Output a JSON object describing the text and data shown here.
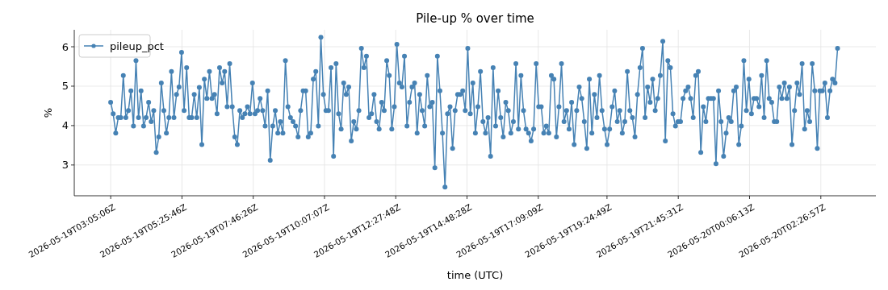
{
  "chart_data": {
    "type": "line",
    "title": "Pile-up % over time",
    "xlabel": "time (UTC)",
    "ylabel": "%",
    "x": [
      "2026-05-19T03:05",
      "2026-05-19T03:10",
      "2026-05-19T03:15",
      "2026-05-19T03:20",
      "2026-05-19T03:25",
      "2026-05-19T03:30",
      "2026-05-19T03:35",
      "2026-05-19T03:40",
      "2026-05-19T03:45",
      "2026-05-19T03:50",
      "2026-05-19T03:55",
      "2026-05-19T04:00",
      "2026-05-19T04:05",
      "2026-05-19T04:10",
      "2026-05-19T04:15",
      "2026-05-19T04:20",
      "2026-05-19T04:25",
      "2026-05-19T04:30",
      "2026-05-19T04:35",
      "2026-05-19T04:40",
      "2026-05-19T04:45",
      "2026-05-19T04:50",
      "2026-05-19T04:55",
      "2026-05-19T05:00",
      "2026-05-19T05:05",
      "2026-05-19T05:10",
      "2026-05-19T05:15",
      "2026-05-19T05:20",
      "2026-05-19T05:25",
      "2026-05-19T05:30",
      "2026-05-19T05:35",
      "2026-05-19T05:40",
      "2026-05-19T05:45",
      "2026-05-19T05:50",
      "2026-05-19T05:55",
      "2026-05-19T06:00",
      "2026-05-19T06:05",
      "2026-05-19T06:10",
      "2026-05-19T06:15",
      "2026-05-19T06:20",
      "2026-05-19T06:25",
      "2026-05-19T06:30",
      "2026-05-19T06:35",
      "2026-05-19T06:40",
      "2026-05-19T06:45",
      "2026-05-19T06:50",
      "2026-05-19T06:55",
      "2026-05-19T07:00",
      "2026-05-19T07:05",
      "2026-05-19T07:10",
      "2026-05-19T07:15",
      "2026-05-19T07:20",
      "2026-05-19T07:25",
      "2026-05-19T07:30",
      "2026-05-19T07:35",
      "2026-05-19T07:40",
      "2026-05-19T07:45",
      "2026-05-19T07:50",
      "2026-05-19T07:55",
      "2026-05-19T08:00",
      "2026-05-19T08:05",
      "2026-05-19T08:10",
      "2026-05-19T08:15",
      "2026-05-19T08:20",
      "2026-05-19T08:25",
      "2026-05-19T08:30",
      "2026-05-19T08:35",
      "2026-05-19T08:40",
      "2026-05-19T08:45",
      "2026-05-19T08:50",
      "2026-05-19T08:55",
      "2026-05-19T09:00",
      "2026-05-19T09:05",
      "2026-05-19T09:10",
      "2026-05-19T09:15",
      "2026-05-19T09:20",
      "2026-05-19T09:25",
      "2026-05-19T09:30",
      "2026-05-19T09:35",
      "2026-05-19T09:40",
      "2026-05-19T09:45",
      "2026-05-19T09:50",
      "2026-05-19T09:55",
      "2026-05-19T10:00",
      "2026-05-19T10:05",
      "2026-05-19T10:10",
      "2026-05-19T10:15",
      "2026-05-19T10:20",
      "2026-05-19T10:25",
      "2026-05-19T10:30",
      "2026-05-19T10:35",
      "2026-05-19T10:40",
      "2026-05-19T10:45",
      "2026-05-19T10:50",
      "2026-05-19T10:55",
      "2026-05-19T11:00",
      "2026-05-19T11:05",
      "2026-05-19T11:10",
      "2026-05-19T11:15",
      "2026-05-19T11:20",
      "2026-05-19T11:25",
      "2026-05-19T11:30",
      "2026-05-19T11:35",
      "2026-05-19T11:40",
      "2026-05-19T11:45",
      "2026-05-19T11:50",
      "2026-05-19T11:55",
      "2026-05-19T12:00",
      "2026-05-19T12:05",
      "2026-05-19T12:10",
      "2026-05-19T12:15",
      "2026-05-19T12:20",
      "2026-05-19T12:25",
      "2026-05-19T12:30",
      "2026-05-19T12:35",
      "2026-05-19T12:40",
      "2026-05-19T12:45",
      "2026-05-19T12:50",
      "2026-05-19T12:55",
      "2026-05-19T13:00",
      "2026-05-19T13:05",
      "2026-05-19T13:10",
      "2026-05-19T13:15",
      "2026-05-19T13:20",
      "2026-05-19T13:25",
      "2026-05-19T13:30",
      "2026-05-19T13:35",
      "2026-05-19T13:40",
      "2026-05-19T13:45",
      "2026-05-19T13:50",
      "2026-05-19T13:55",
      "2026-05-19T14:00",
      "2026-05-19T14:05",
      "2026-05-19T14:10",
      "2026-05-19T14:15",
      "2026-05-19T14:20",
      "2026-05-19T14:25",
      "2026-05-19T14:30",
      "2026-05-19T14:35",
      "2026-05-19T14:40",
      "2026-05-19T14:45",
      "2026-05-19T14:50",
      "2026-05-19T14:55",
      "2026-05-19T15:00",
      "2026-05-19T15:05",
      "2026-05-19T15:10",
      "2026-05-19T15:15",
      "2026-05-19T15:20",
      "2026-05-19T15:25",
      "2026-05-19T15:30",
      "2026-05-19T15:35",
      "2026-05-19T15:40",
      "2026-05-19T15:45",
      "2026-05-19T15:50",
      "2026-05-19T15:55",
      "2026-05-19T16:00",
      "2026-05-19T16:05",
      "2026-05-19T16:10",
      "2026-05-19T16:15",
      "2026-05-19T16:20",
      "2026-05-19T16:25",
      "2026-05-19T16:30",
      "2026-05-19T16:35",
      "2026-05-19T16:40",
      "2026-05-19T16:45",
      "2026-05-19T16:50",
      "2026-05-19T16:55",
      "2026-05-19T17:00",
      "2026-05-19T17:05",
      "2026-05-19T17:10",
      "2026-05-19T17:15",
      "2026-05-19T17:20",
      "2026-05-19T17:25",
      "2026-05-19T17:30",
      "2026-05-19T17:35",
      "2026-05-19T17:40",
      "2026-05-19T17:45",
      "2026-05-19T17:50",
      "2026-05-19T17:55",
      "2026-05-19T18:00",
      "2026-05-19T18:05",
      "2026-05-19T18:10",
      "2026-05-19T18:15",
      "2026-05-19T18:20",
      "2026-05-19T18:25",
      "2026-05-19T18:30",
      "2026-05-19T18:35",
      "2026-05-19T18:40",
      "2026-05-19T18:45",
      "2026-05-19T18:50",
      "2026-05-19T18:55",
      "2026-05-19T19:00",
      "2026-05-19T19:05",
      "2026-05-19T19:10",
      "2026-05-19T19:15",
      "2026-05-19T19:20",
      "2026-05-19T19:25",
      "2026-05-19T19:30",
      "2026-05-19T19:35",
      "2026-05-19T19:40",
      "2026-05-19T19:45",
      "2026-05-19T19:50",
      "2026-05-19T19:55",
      "2026-05-19T20:00",
      "2026-05-19T20:05",
      "2026-05-19T20:10",
      "2026-05-19T20:15",
      "2026-05-19T20:20",
      "2026-05-19T20:25",
      "2026-05-19T20:30",
      "2026-05-19T20:35",
      "2026-05-19T20:40",
      "2026-05-19T20:45",
      "2026-05-19T20:50",
      "2026-05-19T20:55",
      "2026-05-19T21:00",
      "2026-05-19T21:05",
      "2026-05-19T21:10",
      "2026-05-19T21:15",
      "2026-05-19T21:20",
      "2026-05-19T21:25",
      "2026-05-19T21:30",
      "2026-05-19T21:35",
      "2026-05-19T21:40",
      "2026-05-19T21:45",
      "2026-05-19T21:50",
      "2026-05-19T21:55",
      "2026-05-19T22:00",
      "2026-05-19T22:05",
      "2026-05-19T22:10",
      "2026-05-19T22:15",
      "2026-05-19T22:20",
      "2026-05-19T22:25",
      "2026-05-19T22:30",
      "2026-05-19T22:35",
      "2026-05-19T22:40",
      "2026-05-19T22:45",
      "2026-05-19T22:50",
      "2026-05-19T22:55",
      "2026-05-19T23:00",
      "2026-05-19T23:05",
      "2026-05-19T23:10",
      "2026-05-19T23:15",
      "2026-05-19T23:20",
      "2026-05-19T23:25",
      "2026-05-19T23:30",
      "2026-05-19T23:35",
      "2026-05-19T23:40",
      "2026-05-19T23:45",
      "2026-05-19T23:50",
      "2026-05-19T23:55",
      "2026-05-20T00:00",
      "2026-05-20T00:05",
      "2026-05-20T00:10",
      "2026-05-20T00:15",
      "2026-05-20T00:20",
      "2026-05-20T00:25",
      "2026-05-20T00:30",
      "2026-05-20T00:35",
      "2026-05-20T00:40",
      "2026-05-20T00:45",
      "2026-05-20T00:50",
      "2026-05-20T00:55",
      "2026-05-20T01:00",
      "2026-05-20T01:05",
      "2026-05-20T01:10",
      "2026-05-20T01:15",
      "2026-05-20T01:20",
      "2026-05-20T01:25",
      "2026-05-20T01:30",
      "2026-05-20T01:35",
      "2026-05-20T01:40",
      "2026-05-20T01:45",
      "2026-05-20T01:50",
      "2026-05-20T01:55",
      "2026-05-20T02:00",
      "2026-05-20T02:05",
      "2026-05-20T02:10",
      "2026-05-20T02:15",
      "2026-05-20T02:20",
      "2026-05-20T02:25",
      "2026-05-20T02:30",
      "2026-05-20T02:35",
      "2026-05-20T02:40",
      "2026-05-20T02:45",
      "2026-05-20T02:50",
      "2026-05-20T02:55",
      "2026-05-20T03:00"
    ],
    "series": [
      {
        "name": "pileup_pct",
        "color": "#4682b4",
        "values": [
          4.59,
          4.3,
          3.81,
          4.2,
          4.2,
          5.27,
          4.2,
          4.38,
          4.88,
          3.99,
          5.65,
          4.2,
          4.88,
          3.99,
          4.2,
          4.59,
          4.1,
          4.38,
          3.32,
          3.71,
          5.08,
          4.38,
          3.81,
          4.2,
          5.37,
          4.2,
          4.79,
          4.98,
          5.86,
          4.38,
          5.47,
          4.2,
          4.2,
          4.79,
          4.2,
          4.97,
          3.52,
          5.18,
          4.69,
          5.37,
          4.69,
          4.79,
          4.3,
          5.47,
          5.08,
          5.37,
          4.48,
          5.57,
          4.48,
          3.71,
          3.52,
          4.38,
          4.2,
          4.3,
          4.48,
          4.3,
          5.08,
          4.3,
          4.38,
          4.69,
          4.38,
          3.99,
          4.88,
          3.12,
          3.99,
          4.38,
          3.81,
          4.1,
          3.81,
          5.65,
          4.48,
          4.2,
          4.1,
          3.99,
          3.71,
          4.38,
          4.88,
          4.88,
          3.71,
          3.81,
          5.18,
          5.37,
          3.99,
          6.24,
          4.79,
          4.38,
          4.38,
          5.47,
          3.22,
          5.57,
          4.3,
          3.91,
          5.08,
          4.79,
          4.98,
          3.61,
          4.1,
          3.91,
          4.38,
          5.96,
          5.47,
          5.76,
          4.2,
          4.3,
          4.79,
          4.1,
          3.91,
          4.59,
          4.38,
          5.65,
          5.27,
          3.91,
          4.48,
          6.06,
          5.08,
          4.98,
          5.76,
          3.99,
          4.59,
          4.98,
          5.08,
          3.81,
          4.79,
          4.38,
          3.99,
          5.27,
          4.48,
          4.59,
          2.93,
          5.76,
          4.88,
          3.81,
          2.44,
          4.3,
          4.48,
          3.42,
          4.38,
          4.79,
          4.79,
          4.88,
          4.38,
          5.96,
          4.3,
          5.08,
          3.81,
          4.48,
          5.37,
          4.1,
          3.81,
          4.2,
          3.22,
          5.47,
          3.99,
          4.88,
          4.2,
          3.71,
          4.59,
          4.38,
          3.81,
          4.1,
          5.57,
          3.91,
          5.27,
          4.38,
          3.91,
          3.81,
          3.61,
          3.91,
          5.57,
          4.48,
          4.48,
          3.81,
          3.99,
          3.81,
          5.27,
          5.18,
          3.71,
          4.48,
          5.57,
          4.1,
          4.38,
          3.91,
          4.59,
          3.52,
          4.38,
          4.98,
          4.69,
          4.1,
          3.42,
          5.18,
          3.81,
          4.79,
          4.2,
          5.27,
          4.38,
          3.91,
          3.52,
          3.91,
          4.48,
          4.88,
          4.1,
          4.38,
          3.81,
          4.1,
          5.37,
          4.38,
          4.2,
          3.71,
          4.79,
          5.47,
          5.96,
          4.2,
          4.98,
          4.59,
          5.18,
          4.38,
          4.69,
          5.27,
          6.14,
          3.61,
          5.65,
          5.47,
          4.3,
          3.99,
          4.1,
          4.1,
          4.69,
          4.88,
          4.98,
          4.69,
          4.2,
          5.27,
          5.37,
          3.32,
          4.48,
          4.1,
          4.69,
          4.69,
          4.69,
          3.03,
          4.88,
          4.1,
          3.22,
          3.81,
          4.2,
          4.1,
          4.88,
          4.98,
          3.52,
          3.99,
          5.65,
          4.38,
          5.18,
          4.3,
          4.69,
          4.69,
          4.48,
          5.27,
          4.2,
          5.65,
          4.69,
          4.59,
          4.1,
          4.1,
          4.98,
          4.69,
          5.08,
          4.69,
          4.98,
          3.52,
          4.38,
          5.08,
          4.79,
          5.57,
          3.91,
          4.38,
          4.1,
          5.57,
          4.88,
          3.42,
          4.88,
          4.88,
          5.08,
          4.2,
          4.88,
          5.18,
          5.08,
          5.96
        ]
      }
    ],
    "xlim": [
      "2026-05-19T01:53:10",
      "2026-05-20T04:15:39"
    ],
    "xticks": [
      {
        "value": "2026-05-19T03:05:06",
        "label": "2026-05-19T03:05:06Z"
      },
      {
        "value": "2026-05-19T05:25:46",
        "label": "2026-05-19T05:25:46Z"
      },
      {
        "value": "2026-05-19T07:46:26",
        "label": "2026-05-19T07:46:26Z"
      },
      {
        "value": "2026-05-19T10:07:07",
        "label": "2026-05-19T10:07:07Z"
      },
      {
        "value": "2026-05-19T12:27:48",
        "label": "2026-05-19T12:27:48Z"
      },
      {
        "value": "2026-05-19T14:48:28",
        "label": "2026-05-19T14:48:28Z"
      },
      {
        "value": "2026-05-19T17:09:09",
        "label": "2026-05-19T17:09:09Z"
      },
      {
        "value": "2026-05-19T19:24:49",
        "label": "2026-05-19T19:24:49Z"
      },
      {
        "value": "2026-05-19T21:45:31",
        "label": "2026-05-19T21:45:31Z"
      },
      {
        "value": "2026-05-20T00:06:13",
        "label": "2026-05-20T00:06:13Z"
      },
      {
        "value": "2026-05-20T02:26:57",
        "label": "2026-05-20T02:26:57Z"
      }
    ],
    "ylim": [
      2.22,
      6.43
    ],
    "yticks": [
      3,
      4,
      5,
      6
    ],
    "grid": true,
    "legend": "top left",
    "marker": "circle",
    "line_style": "solid"
  }
}
